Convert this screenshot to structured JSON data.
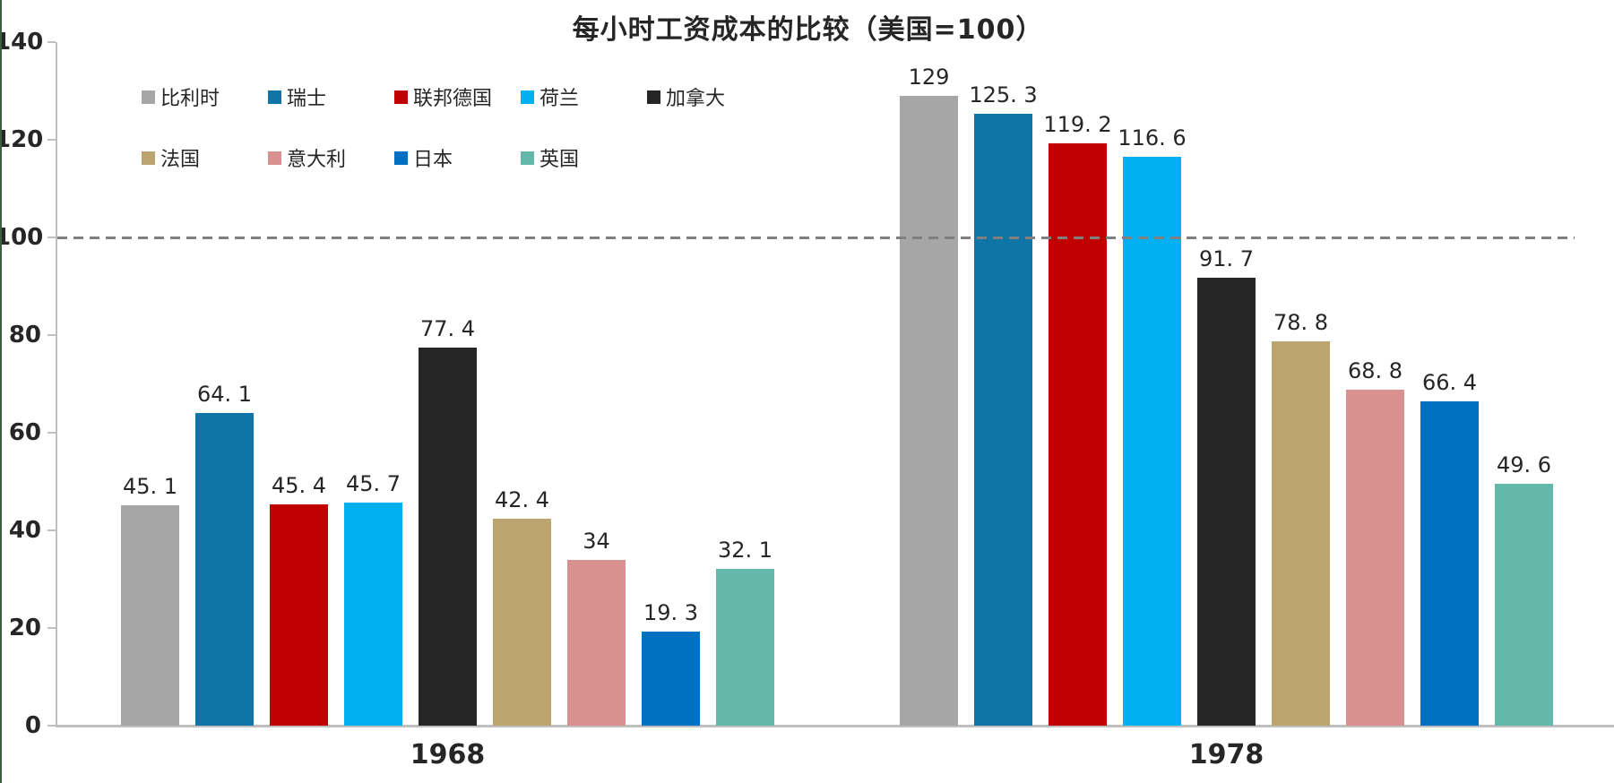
{
  "title": "每小时工资成本的比较（美国=100）",
  "chart_data": {
    "type": "bar",
    "title": "每小时工资成本的比较（美国=100）",
    "categories": [
      "1968",
      "1978"
    ],
    "series": [
      {
        "name": "比利时",
        "color": "#A6A6A6",
        "values": [
          45.1,
          129
        ],
        "labels": [
          "45. 1",
          "129"
        ]
      },
      {
        "name": "瑞士",
        "color": "#0F74A6",
        "values": [
          64.1,
          125.3
        ],
        "labels": [
          "64. 1",
          "125. 3"
        ]
      },
      {
        "name": "联邦德国",
        "color": "#C00000",
        "values": [
          45.4,
          119.2
        ],
        "labels": [
          "45. 4",
          "119. 2"
        ]
      },
      {
        "name": "荷兰",
        "color": "#00B0F0",
        "values": [
          45.7,
          116.6
        ],
        "labels": [
          "45. 7",
          "116. 6"
        ]
      },
      {
        "name": "加拿大",
        "color": "#262626",
        "values": [
          77.4,
          91.7
        ],
        "labels": [
          "77. 4",
          "91. 7"
        ]
      },
      {
        "name": "法国",
        "color": "#BBA46D",
        "values": [
          42.4,
          78.8
        ],
        "labels": [
          "42. 4",
          "78. 8"
        ]
      },
      {
        "name": "意大利",
        "color": "#D8918F",
        "values": [
          34,
          68.8
        ],
        "labels": [
          "34",
          "68. 8"
        ]
      },
      {
        "name": "日本",
        "color": "#0070C0",
        "values": [
          19.3,
          66.4
        ],
        "labels": [
          "19. 3",
          "66. 4"
        ]
      },
      {
        "name": "英国",
        "color": "#63B8AA",
        "values": [
          32.1,
          49.6
        ],
        "labels": [
          "32. 1",
          "49. 6"
        ]
      }
    ],
    "ylim": [
      0,
      140
    ],
    "yticks": [
      0,
      20,
      40,
      60,
      80,
      100,
      120,
      140
    ],
    "reference_line": {
      "value": 100,
      "style": "dashed",
      "color": "#7F7F7F"
    },
    "legend_position": "top-left",
    "legend_rows": [
      [
        "比利时",
        "瑞士",
        "联邦德国",
        "荷兰",
        "加拿大"
      ],
      [
        "法国",
        "意大利",
        "日本",
        "英国"
      ]
    ],
    "grid": false,
    "axis_color": "#BFBFBF",
    "text_color": "#262626"
  },
  "page": {
    "background": "#FFFFFF",
    "left_edge_color": "#37613F"
  }
}
